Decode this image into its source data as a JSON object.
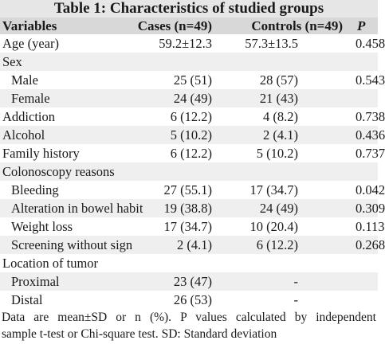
{
  "table": {
    "title": "Table 1: Characteristics of studied groups",
    "headers": {
      "variables": "Variables",
      "cases": "Cases (n=49)",
      "controls": "Controls (n=49)",
      "p": "P"
    },
    "rows": [
      {
        "label": "Age (year)",
        "cases": "59.2±12.3",
        "controls": "57.3±13.5",
        "p": "0.458",
        "indent": false,
        "shade": false
      },
      {
        "label": "Sex",
        "cases": "",
        "controls": "",
        "p": "",
        "indent": false,
        "shade": true
      },
      {
        "label": "Male",
        "cases": "25 (51)",
        "controls": "28 (57)",
        "p": "0.543",
        "indent": true,
        "shade": false
      },
      {
        "label": "Female",
        "cases": "24 (49)",
        "controls": "21 (43)",
        "p": "",
        "indent": true,
        "shade": true
      },
      {
        "label": "Addiction",
        "cases": "6 (12.2)",
        "controls": "4 (8.2)",
        "p": "0.738",
        "indent": false,
        "shade": false
      },
      {
        "label": "Alcohol",
        "cases": "5 (10.2)",
        "controls": "2 (4.1)",
        "p": "0.436",
        "indent": false,
        "shade": true
      },
      {
        "label": "Family history",
        "cases": "6 (12.2)",
        "controls": "5 (10.2)",
        "p": "0.737",
        "indent": false,
        "shade": false
      },
      {
        "label": "Colonoscopy reasons",
        "cases": "",
        "controls": "",
        "p": "",
        "indent": false,
        "shade": true
      },
      {
        "label": "Bleeding",
        "cases": "27 (55.1)",
        "controls": "17 (34.7)",
        "p": "0.042",
        "indent": true,
        "shade": false
      },
      {
        "label": "Alteration in bowel habit",
        "cases": "19 (38.8)",
        "controls": "24 (49)",
        "p": "0.309",
        "indent": true,
        "shade": true
      },
      {
        "label": "Weight loss",
        "cases": "17 (34.7)",
        "controls": "10 (20.4)",
        "p": "0.113",
        "indent": true,
        "shade": false
      },
      {
        "label": "Screening without sign",
        "cases": "2 (4.1)",
        "controls": "6 (12.2)",
        "p": "0.268",
        "indent": true,
        "shade": true
      },
      {
        "label": "Location of tumor",
        "cases": "",
        "controls": "",
        "p": "",
        "indent": false,
        "shade": false
      },
      {
        "label": "Proximal",
        "cases": "23 (47)",
        "controls": "-",
        "p": "",
        "indent": true,
        "shade": true
      },
      {
        "label": "Distal",
        "cases": "26 (53)",
        "controls": "-",
        "p": "",
        "indent": true,
        "shade": false
      }
    ],
    "footnote": [
      "Data are mean±SD or n (%). P values calculated by independent",
      "sample t-test or Chi-square test. SD: Standard deviation"
    ]
  }
}
